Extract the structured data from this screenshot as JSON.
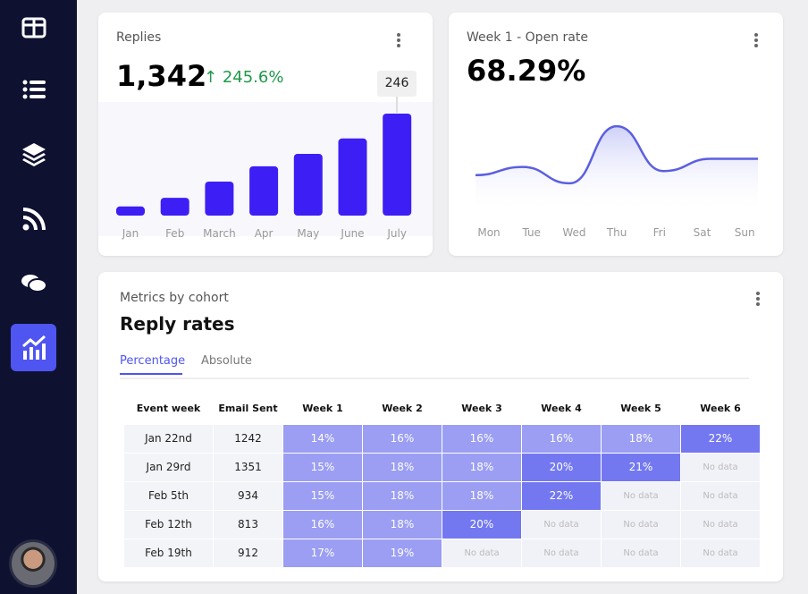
{
  "sidebar": {
    "items": [
      {
        "icon": "layout-columns-icon"
      },
      {
        "icon": "list-icon"
      },
      {
        "icon": "layers-icon"
      },
      {
        "icon": "rss-icon"
      },
      {
        "icon": "chat-icon"
      },
      {
        "icon": "chart-trend-icon",
        "active": true
      }
    ],
    "accent": "#4f55f0"
  },
  "replies": {
    "title": "Replies",
    "total": "1,342",
    "change": "245.6%",
    "tooltip": "246",
    "chart_data": {
      "type": "bar",
      "categories": [
        "Jan",
        "Feb",
        "March",
        "Apr",
        "May",
        "June",
        "July"
      ],
      "values": [
        22,
        43,
        82,
        119,
        149,
        186,
        246
      ],
      "color": "#3d1ff5"
    }
  },
  "open_rate": {
    "title": "Week 1 - Open rate",
    "value": "68.29%",
    "chart_data": {
      "type": "area",
      "categories": [
        "Mon",
        "Tue",
        "Wed",
        "Thu",
        "Fri",
        "Sat",
        "Sun"
      ],
      "values": [
        66,
        67,
        65,
        72,
        66.5,
        68,
        68
      ],
      "color": "#5b5fe0"
    }
  },
  "cohort": {
    "subtitle": "Metrics by cohort",
    "title": "Reply rates",
    "tabs": [
      "Percentage",
      "Absolute"
    ],
    "headers": [
      "Event week",
      "Email Sent",
      "Week 1",
      "Week 2",
      "Week 3",
      "Week 4",
      "Week 5",
      "Week 6"
    ],
    "rows": [
      {
        "week": "Jan 22nd",
        "sent": "1242",
        "cells": [
          "14%",
          "16%",
          "16%",
          "16%",
          "18%",
          "22%"
        ]
      },
      {
        "week": "Jan 29rd",
        "sent": "1351",
        "cells": [
          "15%",
          "18%",
          "18%",
          "20%",
          "21%",
          "No data"
        ]
      },
      {
        "week": "Feb 5th",
        "sent": "934",
        "cells": [
          "15%",
          "18%",
          "18%",
          "22%",
          "No data",
          "No data"
        ]
      },
      {
        "week": "Feb 12th",
        "sent": "813",
        "cells": [
          "16%",
          "18%",
          "20%",
          "No data",
          "No data",
          "No data"
        ]
      },
      {
        "week": "Feb 19th",
        "sent": "912",
        "cells": [
          "17%",
          "19%",
          "No data",
          "No data",
          "No data",
          "No data"
        ]
      }
    ]
  }
}
